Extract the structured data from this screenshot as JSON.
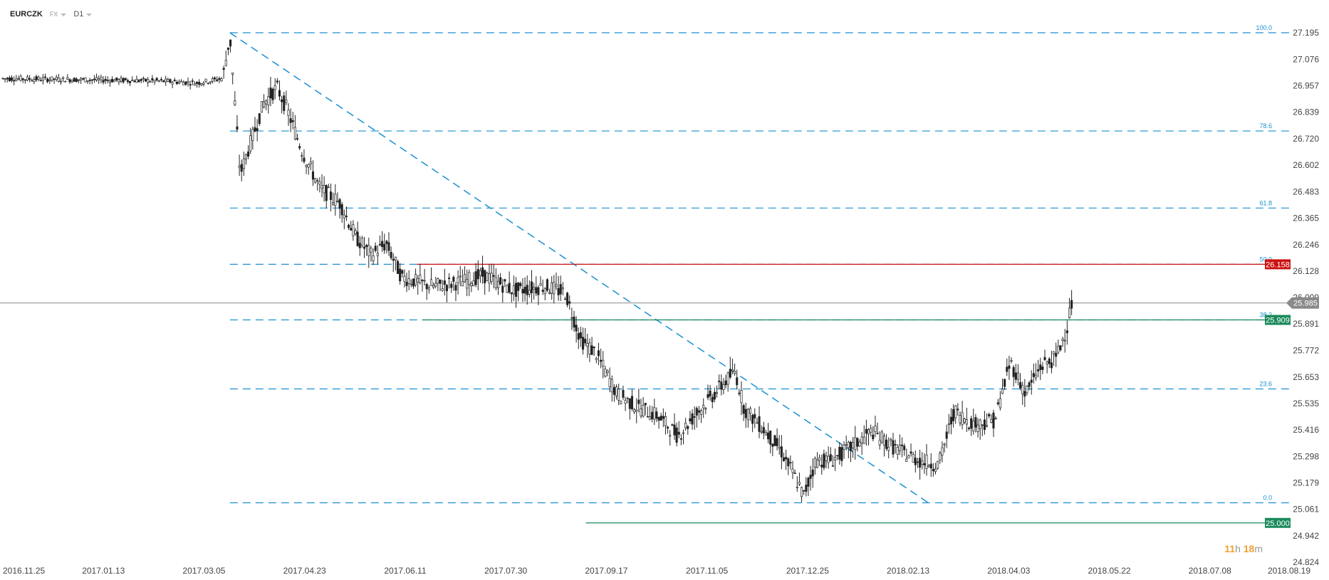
{
  "toolbar": {
    "symbol": "EURCZK",
    "market": "FX",
    "timeframe": "D1"
  },
  "countdown": {
    "hours": "11",
    "h_unit": "h",
    "minutes": "18",
    "m_unit": "m"
  },
  "colors": {
    "fib": "#1a8fd0",
    "resistance": "#cc1111",
    "support": "#1a8a5a",
    "current": "#888888",
    "candle": "#222222"
  },
  "chart_data": {
    "type": "candlestick",
    "symbol": "EURCZK",
    "timeframe": "D1",
    "x_ticks": [
      "2016.11.25",
      "2017.01.13",
      "2017.03.05",
      "2017.04.23",
      "2017.06.11",
      "2017.07.30",
      "2017.09.17",
      "2017.11.05",
      "2017.12.25",
      "2018.02.13",
      "2018.04.03",
      "2018.05.22",
      "2018.07.08",
      "2018.08.19"
    ],
    "y_ticks": [
      "27.195",
      "27.076",
      "26.957",
      "26.839",
      "26.720",
      "26.602",
      "26.483",
      "26.365",
      "26.246",
      "26.128",
      "26.009",
      "25.891",
      "25.772",
      "25.653",
      "25.535",
      "25.416",
      "25.298",
      "25.179",
      "25.061",
      "24.942",
      "24.824"
    ],
    "ylim": [
      24.824,
      27.195
    ],
    "price_path": [
      [
        0,
        26.99
      ],
      [
        0.15,
        26.98
      ],
      [
        0.19,
        26.97
      ],
      [
        0.215,
        26.99
      ],
      [
        0.222,
        27.18
      ],
      [
        0.232,
        26.56
      ],
      [
        0.245,
        26.74
      ],
      [
        0.255,
        26.88
      ],
      [
        0.268,
        26.95
      ],
      [
        0.278,
        26.85
      ],
      [
        0.293,
        26.66
      ],
      [
        0.31,
        26.5
      ],
      [
        0.33,
        26.43
      ],
      [
        0.345,
        26.28
      ],
      [
        0.36,
        26.2
      ],
      [
        0.375,
        26.25
      ],
      [
        0.39,
        26.1
      ],
      [
        0.42,
        26.06
      ],
      [
        0.45,
        26.08
      ],
      [
        0.47,
        26.11
      ],
      [
        0.5,
        26.04
      ],
      [
        0.53,
        26.06
      ],
      [
        0.55,
        26.03
      ],
      [
        0.565,
        25.82
      ],
      [
        0.58,
        25.76
      ],
      [
        0.6,
        25.58
      ],
      [
        0.62,
        25.52
      ],
      [
        0.64,
        25.48
      ],
      [
        0.66,
        25.39
      ],
      [
        0.68,
        25.5
      ],
      [
        0.7,
        25.6
      ],
      [
        0.716,
        25.68
      ],
      [
        0.725,
        25.51
      ],
      [
        0.74,
        25.44
      ],
      [
        0.76,
        25.33
      ],
      [
        0.775,
        25.2
      ],
      [
        0.783,
        25.12
      ],
      [
        0.795,
        25.28
      ],
      [
        0.81,
        25.28
      ],
      [
        0.83,
        25.34
      ],
      [
        0.85,
        25.41
      ],
      [
        0.87,
        25.34
      ],
      [
        0.895,
        25.28
      ],
      [
        0.915,
        25.26
      ],
      [
        0.93,
        25.5
      ],
      [
        0.95,
        25.44
      ],
      [
        0.97,
        25.46
      ],
      [
        0.985,
        25.72
      ],
      [
        1.0,
        25.58
      ],
      [
        1.015,
        25.7
      ],
      [
        1.03,
        25.74
      ],
      [
        1.04,
        25.87
      ],
      [
        1.045,
        25.985
      ]
    ],
    "fib_levels": [
      {
        "label": "100.0",
        "value": 27.195
      },
      {
        "label": "78.6",
        "value": 26.755
      },
      {
        "label": "61.8",
        "value": 26.41
      },
      {
        "label": "50.0",
        "value": 26.158
      },
      {
        "label": "38.2",
        "value": 25.909
      },
      {
        "label": "23.6",
        "value": 25.6
      },
      {
        "label": "0.0",
        "value": 25.09
      }
    ],
    "trendline": {
      "from": [
        0.222,
        27.195
      ],
      "to": [
        0.905,
        25.09
      ]
    },
    "resistance": {
      "value": 26.158,
      "label": "26.158"
    },
    "support": [
      {
        "value": 25.909,
        "label": "25.909"
      },
      {
        "value": 25.0,
        "label": "25.000"
      }
    ],
    "current_price": {
      "value": 25.985,
      "label": "25.985"
    }
  }
}
